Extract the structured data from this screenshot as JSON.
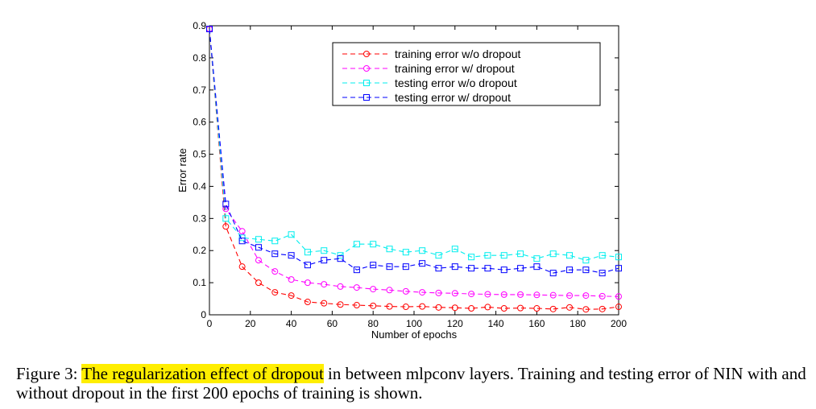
{
  "chart_data": {
    "type": "line",
    "xlabel": "Number of epochs",
    "ylabel": "Error rate",
    "xlim": [
      0,
      200
    ],
    "ylim": [
      0,
      0.9
    ],
    "xticks": [
      "0",
      "20",
      "40",
      "60",
      "80",
      "100",
      "120",
      "140",
      "160",
      "180",
      "200"
    ],
    "yticks": [
      "0",
      "0.1",
      "0.2",
      "0.3",
      "0.4",
      "0.5",
      "0.6",
      "0.7",
      "0.8",
      "0.9"
    ],
    "grid": false,
    "legend_position": "top-right",
    "series": [
      {
        "name": "training error w/o dropout",
        "color": "#ff0000",
        "marker": "circle",
        "x": [
          0,
          8,
          16,
          24,
          32,
          40,
          48,
          56,
          64,
          72,
          80,
          88,
          96,
          104,
          112,
          120,
          128,
          136,
          144,
          152,
          160,
          168,
          176,
          184,
          192,
          200
        ],
        "y": [
          0.89,
          0.275,
          0.15,
          0.1,
          0.07,
          0.06,
          0.04,
          0.036,
          0.032,
          0.03,
          0.028,
          0.026,
          0.025,
          0.026,
          0.023,
          0.022,
          0.02,
          0.024,
          0.02,
          0.021,
          0.02,
          0.018,
          0.023,
          0.017,
          0.018,
          0.025
        ]
      },
      {
        "name": "training error w/ dropout",
        "color": "#ff00ff",
        "marker": "circle",
        "x": [
          0,
          8,
          16,
          24,
          32,
          40,
          48,
          56,
          64,
          72,
          80,
          88,
          96,
          104,
          112,
          120,
          128,
          136,
          144,
          152,
          160,
          168,
          176,
          184,
          192,
          200
        ],
        "y": [
          0.89,
          0.33,
          0.26,
          0.17,
          0.135,
          0.11,
          0.1,
          0.095,
          0.088,
          0.085,
          0.08,
          0.077,
          0.073,
          0.07,
          0.068,
          0.067,
          0.065,
          0.064,
          0.063,
          0.063,
          0.062,
          0.061,
          0.06,
          0.06,
          0.058,
          0.057
        ]
      },
      {
        "name": "testing error w/o dropout",
        "color": "#00eeee",
        "marker": "square",
        "x": [
          0,
          8,
          16,
          24,
          32,
          40,
          48,
          56,
          64,
          72,
          80,
          88,
          96,
          104,
          112,
          120,
          128,
          136,
          144,
          152,
          160,
          168,
          176,
          184,
          192,
          200
        ],
        "y": [
          0.89,
          0.3,
          0.24,
          0.235,
          0.23,
          0.25,
          0.195,
          0.2,
          0.185,
          0.22,
          0.22,
          0.205,
          0.195,
          0.2,
          0.185,
          0.205,
          0.18,
          0.185,
          0.185,
          0.19,
          0.175,
          0.19,
          0.185,
          0.17,
          0.185,
          0.18
        ]
      },
      {
        "name": "testing error w/ dropout",
        "color": "#0000ff",
        "marker": "square",
        "x": [
          0,
          8,
          16,
          24,
          32,
          40,
          48,
          56,
          64,
          72,
          80,
          88,
          96,
          104,
          112,
          120,
          128,
          136,
          144,
          152,
          160,
          168,
          176,
          184,
          192,
          200
        ],
        "y": [
          0.89,
          0.345,
          0.23,
          0.21,
          0.19,
          0.185,
          0.155,
          0.17,
          0.175,
          0.14,
          0.155,
          0.15,
          0.15,
          0.16,
          0.145,
          0.15,
          0.145,
          0.145,
          0.14,
          0.145,
          0.15,
          0.13,
          0.14,
          0.14,
          0.13,
          0.145
        ]
      }
    ]
  },
  "caption": {
    "prefix": "Figure 3: ",
    "highlight": "The regularization effect of dropout",
    "rest": " in between mlpconv layers. Training and testing error of NIN with and without dropout in the first 200 epochs of training is shown."
  }
}
